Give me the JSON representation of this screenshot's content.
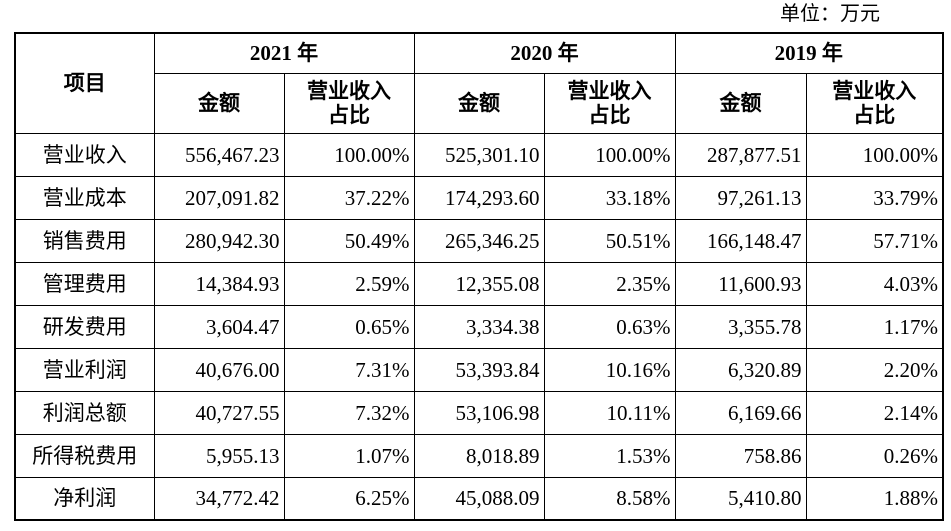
{
  "unit_label": "单位：万元",
  "header": {
    "item": "项目",
    "years": [
      "2021 年",
      "2020 年",
      "2019 年"
    ],
    "amount": "金额",
    "ratio_line1": "营业收入",
    "ratio_line2": "占比"
  },
  "rows": [
    {
      "label": "营业收入",
      "v": [
        "556,467.23",
        "100.00%",
        "525,301.10",
        "100.00%",
        "287,877.51",
        "100.00%"
      ]
    },
    {
      "label": "营业成本",
      "v": [
        "207,091.82",
        "37.22%",
        "174,293.60",
        "33.18%",
        "97,261.13",
        "33.79%"
      ]
    },
    {
      "label": "销售费用",
      "v": [
        "280,942.30",
        "50.49%",
        "265,346.25",
        "50.51%",
        "166,148.47",
        "57.71%"
      ]
    },
    {
      "label": "管理费用",
      "v": [
        "14,384.93",
        "2.59%",
        "12,355.08",
        "2.35%",
        "11,600.93",
        "4.03%"
      ]
    },
    {
      "label": "研发费用",
      "v": [
        "3,604.47",
        "0.65%",
        "3,334.38",
        "0.63%",
        "3,355.78",
        "1.17%"
      ]
    },
    {
      "label": "营业利润",
      "v": [
        "40,676.00",
        "7.31%",
        "53,393.84",
        "10.16%",
        "6,320.89",
        "2.20%"
      ]
    },
    {
      "label": "利润总额",
      "v": [
        "40,727.55",
        "7.32%",
        "53,106.98",
        "10.11%",
        "6,169.66",
        "2.14%"
      ]
    },
    {
      "label": "所得税费用",
      "v": [
        "5,955.13",
        "1.07%",
        "8,018.89",
        "1.53%",
        "758.86",
        "0.26%"
      ]
    },
    {
      "label": "净利润",
      "v": [
        "34,772.42",
        "6.25%",
        "45,088.09",
        "8.58%",
        "5,410.80",
        "1.88%"
      ]
    }
  ]
}
